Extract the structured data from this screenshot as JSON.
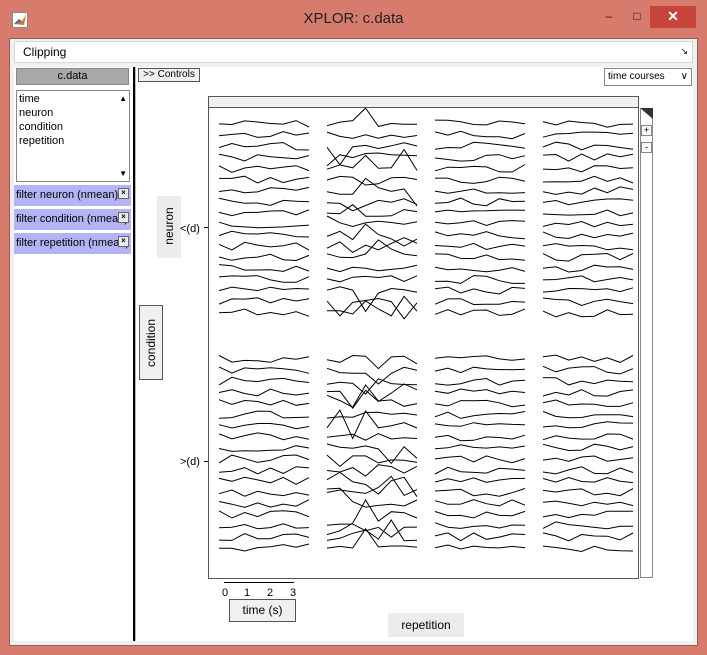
{
  "window": {
    "title": "XPLOR: c.data",
    "minimize": "–",
    "maximize": "□",
    "close": "✕"
  },
  "menu": {
    "clipping": "Clipping",
    "arrow": "↘"
  },
  "left": {
    "header": "c.data",
    "dimensions": [
      "time",
      "neuron",
      "condition",
      "repetition"
    ],
    "filters": [
      "filter neuron (nmean)",
      "filter condition (nmean)",
      "filter repetition (nmean)"
    ],
    "filter_close": "×",
    "scroll_up": "▲",
    "scroll_down": "▼"
  },
  "main": {
    "controls_button": ">> Controls",
    "view_select": "time courses",
    "select_arrow": "∨",
    "neuron_label": "neuron",
    "condition_label": "condition",
    "row_labels": [
      "<(d)",
      ">(d)"
    ],
    "time_ticks": [
      "0",
      "1",
      "2",
      "3"
    ],
    "time_label": "time (s)",
    "repetition_label": "repetition",
    "zoom_in": "+",
    "zoom_out": "-"
  },
  "chart_data": {
    "type": "line",
    "layout_grid": {
      "rows": 2,
      "cols": 4
    },
    "traces_per_panel": 18,
    "x": [
      0,
      0.5,
      1,
      1.5,
      2,
      2.5,
      3,
      3.5
    ],
    "xlabel": "time (s)",
    "row_labels": [
      "<(d)",
      ">(d)"
    ],
    "column_label": "repetition",
    "line_color": "#000000",
    "grid": false
  }
}
